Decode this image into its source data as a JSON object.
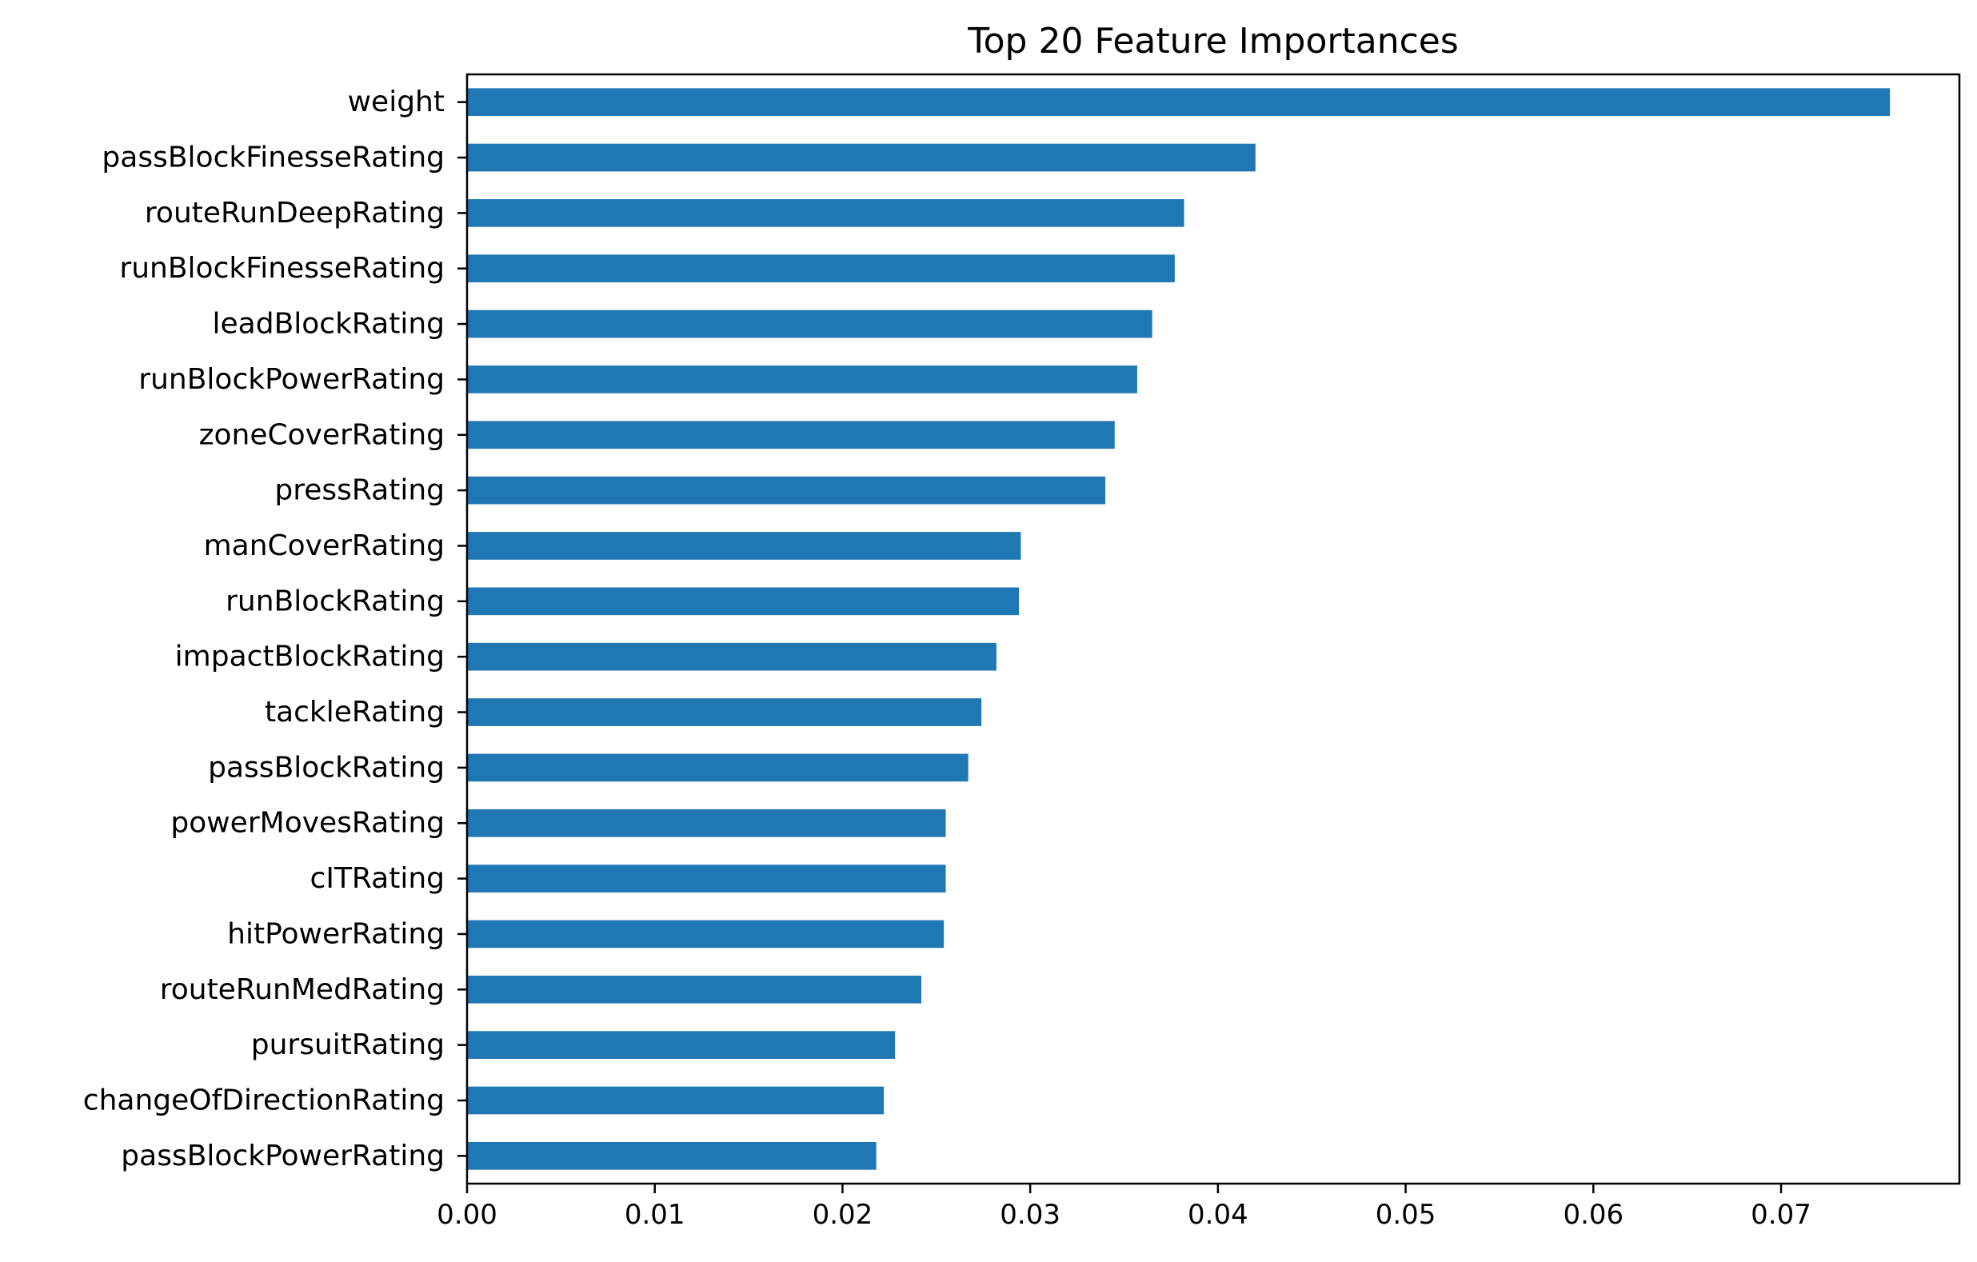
{
  "chart_data": {
    "type": "bar",
    "orientation": "horizontal",
    "title": "Top 20 Feature Importances",
    "xlabel": "",
    "ylabel": "",
    "bar_color": "#1f77b4",
    "xlim": [
      0.0,
      0.0795
    ],
    "xticks": [
      0.0,
      0.01,
      0.02,
      0.03,
      0.04,
      0.05,
      0.06,
      0.07
    ],
    "xtick_labels": [
      "0.00",
      "0.01",
      "0.02",
      "0.03",
      "0.04",
      "0.05",
      "0.06",
      "0.07"
    ],
    "grid": false,
    "legend": null,
    "categories": [
      "weight",
      "passBlockFinesseRating",
      "routeRunDeepRating",
      "runBlockFinesseRating",
      "leadBlockRating",
      "runBlockPowerRating",
      "zoneCoverRating",
      "pressRating",
      "manCoverRating",
      "runBlockRating",
      "impactBlockRating",
      "tackleRating",
      "passBlockRating",
      "powerMovesRating",
      "cITRating",
      "hitPowerRating",
      "routeRunMedRating",
      "pursuitRating",
      "changeOfDirectionRating",
      "passBlockPowerRating"
    ],
    "values": [
      0.0758,
      0.042,
      0.0382,
      0.0377,
      0.0365,
      0.0357,
      0.0345,
      0.034,
      0.0295,
      0.0294,
      0.0282,
      0.0274,
      0.0267,
      0.0255,
      0.0255,
      0.0254,
      0.0242,
      0.0228,
      0.0222,
      0.0218
    ]
  }
}
